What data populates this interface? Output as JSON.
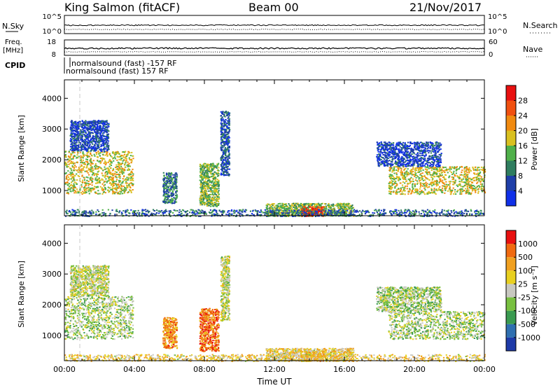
{
  "header": {
    "station": "King Salmon (fitACF)",
    "beam": "Beam 00",
    "date": "21/Nov/2017"
  },
  "summary": {
    "noise_sky_label": "N.Sky",
    "noise_search_label": "N.Search",
    "noise_ticks": [
      "10^5",
      "10^0"
    ],
    "noise_ticks_right": [
      "10^5",
      "10^0"
    ],
    "freq_label_1": "Freq.",
    "freq_label_2": "[MHz]",
    "freq_ticks": [
      "18",
      "8"
    ],
    "nave_label": "Nave",
    "nave_ticks": [
      "60",
      "0"
    ],
    "cpid_label": "CPID",
    "cpid_entries": [
      "normalsound (fast) -157 RF",
      "normalsound (fast) 157 RF"
    ]
  },
  "chart_data": [
    {
      "type": "heatmap",
      "panel": "power",
      "ylabel": "Slant Range [km]",
      "xlim": [
        0,
        24
      ],
      "ylim": [
        180,
        4600
      ],
      "y_ticks": [
        "1000",
        "2000",
        "3000",
        "4000"
      ],
      "colorbar_label": "Power [dB]",
      "colorbar_ticks": [
        "4",
        "8",
        "12",
        "16",
        "20",
        "24",
        "28"
      ],
      "colors": [
        "#1030e8",
        "#1f3fa8",
        "#2f7d5f",
        "#4fb04a",
        "#d9c020",
        "#f08a10",
        "#f05010",
        "#e81010"
      ],
      "regions": [
        {
          "t0": 0.0,
          "t1": 3.9,
          "r0": 900,
          "r1": 2300,
          "level": 0.55
        },
        {
          "t0": 0.3,
          "t1": 2.5,
          "r0": 2300,
          "r1": 3300,
          "level": 0.15
        },
        {
          "t0": 5.6,
          "t1": 6.4,
          "r0": 600,
          "r1": 1600,
          "level": 0.3
        },
        {
          "t0": 7.7,
          "t1": 8.8,
          "r0": 500,
          "r1": 1900,
          "level": 0.45
        },
        {
          "t0": 8.9,
          "t1": 9.4,
          "r0": 1500,
          "r1": 3600,
          "level": 0.2
        },
        {
          "t0": 11.5,
          "t1": 16.5,
          "r0": 180,
          "r1": 600,
          "level": 0.45
        },
        {
          "t0": 13.5,
          "t1": 14.8,
          "r0": 180,
          "r1": 500,
          "level": 0.9
        },
        {
          "t0": 18.5,
          "t1": 24.0,
          "r0": 900,
          "r1": 1800,
          "level": 0.55
        },
        {
          "t0": 17.8,
          "t1": 21.5,
          "r0": 1800,
          "r1": 2600,
          "level": 0.15
        },
        {
          "t0": 0.0,
          "t1": 24.0,
          "r0": 180,
          "r1": 400,
          "level": 0.25
        }
      ]
    },
    {
      "type": "heatmap",
      "panel": "velocity",
      "ylabel": "Slant Range [km]",
      "xlabel": "Time UT",
      "xlim": [
        0,
        24
      ],
      "ylim": [
        180,
        4600
      ],
      "x_ticks": [
        "00:00",
        "04:00",
        "08:00",
        "12:00",
        "16:00",
        "20:00",
        "00:00"
      ],
      "y_ticks": [
        "1000",
        "2000",
        "3000",
        "4000"
      ],
      "colorbar_label": "Velocity [m s⁻¹]",
      "colorbar_ticks": [
        "1000",
        "500",
        "100",
        "25",
        "-25",
        "-100",
        "-500",
        "-1000"
      ],
      "colors": [
        "#1e3aa8",
        "#2f6fb0",
        "#3a9a50",
        "#78c040",
        "#c8c8c0",
        "#e8d020",
        "#f0a020",
        "#f06a10",
        "#e81010"
      ],
      "regions": [
        {
          "t0": 0.0,
          "t1": 3.9,
          "r0": 900,
          "r1": 2300,
          "level": 0.45
        },
        {
          "t0": 0.3,
          "t1": 2.5,
          "r0": 2300,
          "r1": 3300,
          "level": 0.5
        },
        {
          "t0": 5.6,
          "t1": 6.4,
          "r0": 600,
          "r1": 1600,
          "level": 0.75
        },
        {
          "t0": 7.7,
          "t1": 8.8,
          "r0": 500,
          "r1": 1900,
          "level": 0.82
        },
        {
          "t0": 8.9,
          "t1": 9.4,
          "r0": 1500,
          "r1": 3600,
          "level": 0.5
        },
        {
          "t0": 11.5,
          "t1": 16.5,
          "r0": 180,
          "r1": 600,
          "level": 0.6
        },
        {
          "t0": 13.5,
          "t1": 14.8,
          "r0": 180,
          "r1": 500,
          "level": 0.65
        },
        {
          "t0": 18.5,
          "t1": 24.0,
          "r0": 900,
          "r1": 1800,
          "level": 0.45
        },
        {
          "t0": 17.8,
          "t1": 21.5,
          "r0": 1800,
          "r1": 2600,
          "level": 0.45
        },
        {
          "t0": 0.0,
          "t1": 24.0,
          "r0": 180,
          "r1": 400,
          "level": 0.6
        }
      ]
    }
  ]
}
